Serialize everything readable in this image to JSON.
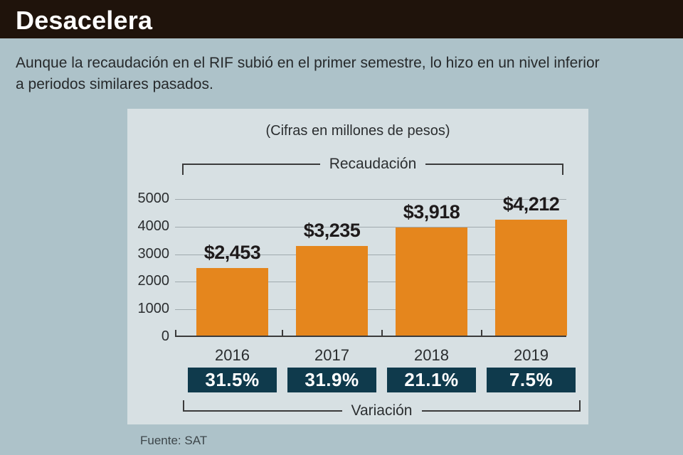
{
  "header": {
    "title": "Desacelera"
  },
  "subtitle_lines": [
    "Aunque la recaudación en el RIF subió en el primer semestre, lo hizo en un nivel inferior",
    "a periodos similares pasados."
  ],
  "panel": {
    "units_note": "(Cifras en millones de pesos)",
    "top_bracket_label": "Recaudación",
    "bottom_bracket_label": "Variación"
  },
  "footer": {
    "source": "Fuente: SAT"
  },
  "colors": {
    "header_bg": "#1f130b",
    "page_bg": "#adc2c9",
    "panel_bg": "#d7e0e3",
    "bar_orange": "#e5861d",
    "pct_box_teal": "#0f3a4c",
    "axis_dark": "#3b3b3b",
    "gridline": "#a0aaae"
  },
  "chart_data": {
    "type": "bar",
    "title": "Recaudación",
    "subtitle": "(Cifras en millones de pesos)",
    "categories": [
      "2016",
      "2017",
      "2018",
      "2019"
    ],
    "series": [
      {
        "name": "Recaudación (millones de pesos)",
        "values": [
          2453,
          3235,
          3918,
          4212
        ]
      }
    ],
    "bar_value_labels": [
      "$2,453",
      "$3,235",
      "$3,918",
      "$4,212"
    ],
    "variation_row": {
      "label": "Variación",
      "values_pct": [
        31.5,
        31.9,
        21.1,
        7.5
      ],
      "labels": [
        "31.5%",
        "31.9%",
        "21.1%",
        "7.5%"
      ]
    },
    "xlabel": "",
    "ylabel": "",
    "ylim": [
      0,
      5000
    ],
    "yticks": [
      0,
      1000,
      2000,
      3000,
      4000,
      5000
    ],
    "grid": true,
    "legend": false,
    "source": "Fuente: SAT"
  }
}
